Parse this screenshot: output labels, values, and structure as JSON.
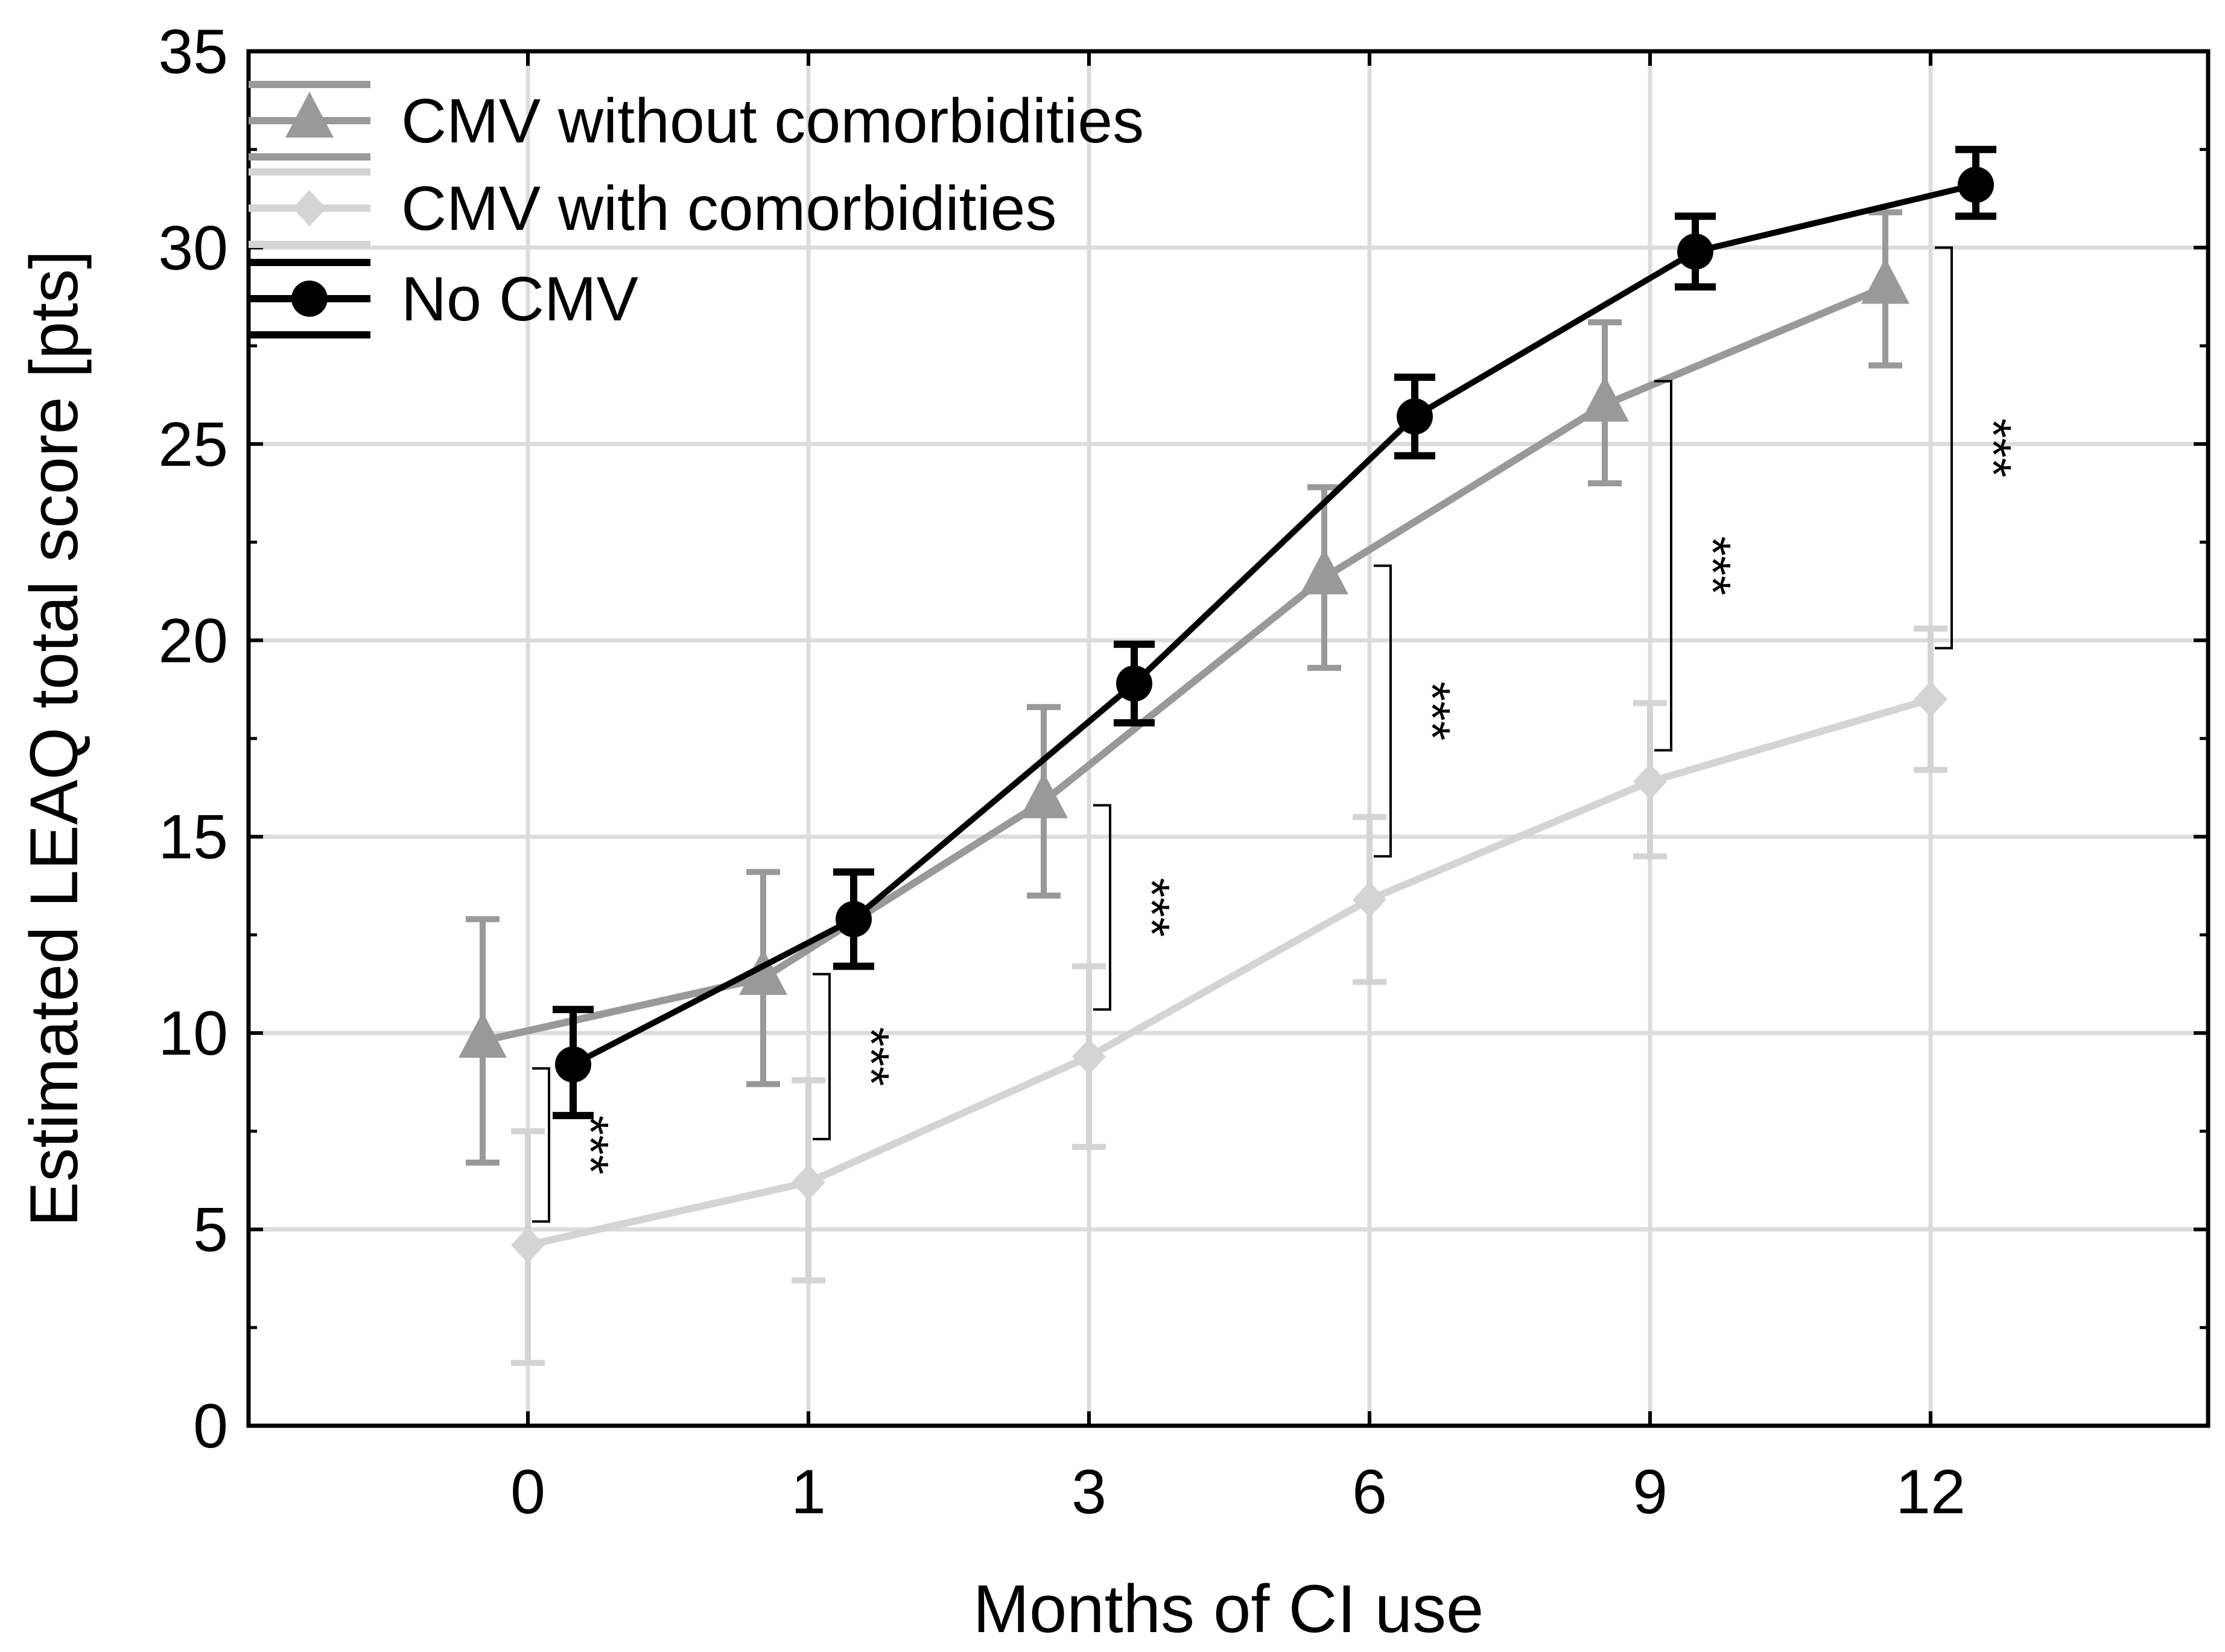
{
  "chart_data": {
    "type": "line",
    "title": "",
    "xlabel": "Months of CI use",
    "ylabel": "Estimated LEAQ total score [pts]",
    "categories": [
      "0",
      "1",
      "3",
      "6",
      "9",
      "12"
    ],
    "ylim": [
      0,
      35
    ],
    "yticks": [
      "0",
      "5",
      "10",
      "15",
      "20",
      "25",
      "30",
      "35"
    ],
    "grid": true,
    "legend_position": "top-left",
    "series": [
      {
        "name": "CMV without comorbidities",
        "color": "#999999",
        "marker": "triangle",
        "values": [
          9.8,
          11.4,
          15.9,
          21.6,
          26.0,
          29.0
        ],
        "err_low": [
          6.7,
          8.7,
          13.5,
          19.3,
          24.0,
          27.0
        ],
        "err_high": [
          12.9,
          14.1,
          18.3,
          23.9,
          28.1,
          30.9
        ]
      },
      {
        "name": "CMV with comorbidities",
        "color": "#d4d4d4",
        "marker": "diamond",
        "values": [
          4.6,
          6.2,
          9.4,
          13.4,
          16.4,
          18.5
        ],
        "err_low": [
          1.6,
          3.7,
          7.1,
          11.3,
          14.5,
          16.7
        ],
        "err_high": [
          7.5,
          8.8,
          11.7,
          15.5,
          18.4,
          20.3
        ]
      },
      {
        "name": "No CMV",
        "color": "#000000",
        "marker": "circle",
        "values": [
          9.2,
          12.9,
          18.9,
          25.7,
          29.9,
          31.6
        ],
        "err_low": [
          7.9,
          11.7,
          17.9,
          24.7,
          29.0,
          30.8
        ],
        "err_high": [
          10.6,
          14.1,
          19.9,
          26.7,
          30.8,
          32.5
        ]
      }
    ],
    "annotations": [
      {
        "category": "0",
        "label": "***",
        "from": 5.2,
        "to": 9.1
      },
      {
        "category": "1",
        "label": "***",
        "from": 7.3,
        "to": 11.5
      },
      {
        "category": "3",
        "label": "***",
        "from": 10.6,
        "to": 15.8
      },
      {
        "category": "6",
        "label": "***",
        "from": 14.5,
        "to": 21.9
      },
      {
        "category": "9",
        "label": "***",
        "from": 17.2,
        "to": 26.6
      },
      {
        "category": "12",
        "label": "***",
        "from": 19.8,
        "to": 30.0
      }
    ]
  }
}
